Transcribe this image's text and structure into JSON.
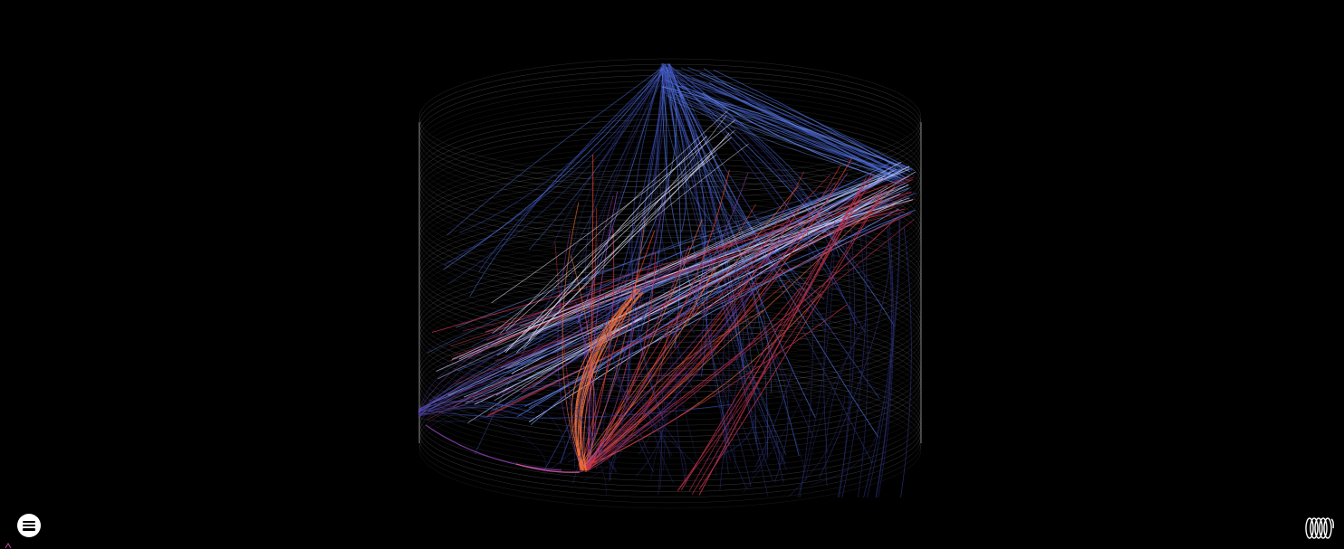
{
  "colors": {
    "background": "#000000",
    "cylinder_lines": "#b8b8b8",
    "palette": [
      "#2c2f7a",
      "#3a4cb0",
      "#4d6ed8",
      "#6d8ff0",
      "#c7d3ff",
      "#8a3fb0",
      "#c0304a",
      "#e0402c",
      "#f0703a"
    ]
  },
  "controls": {
    "menu_icon": "hamburger-menu-icon",
    "coil_icon": "coil-icon"
  }
}
